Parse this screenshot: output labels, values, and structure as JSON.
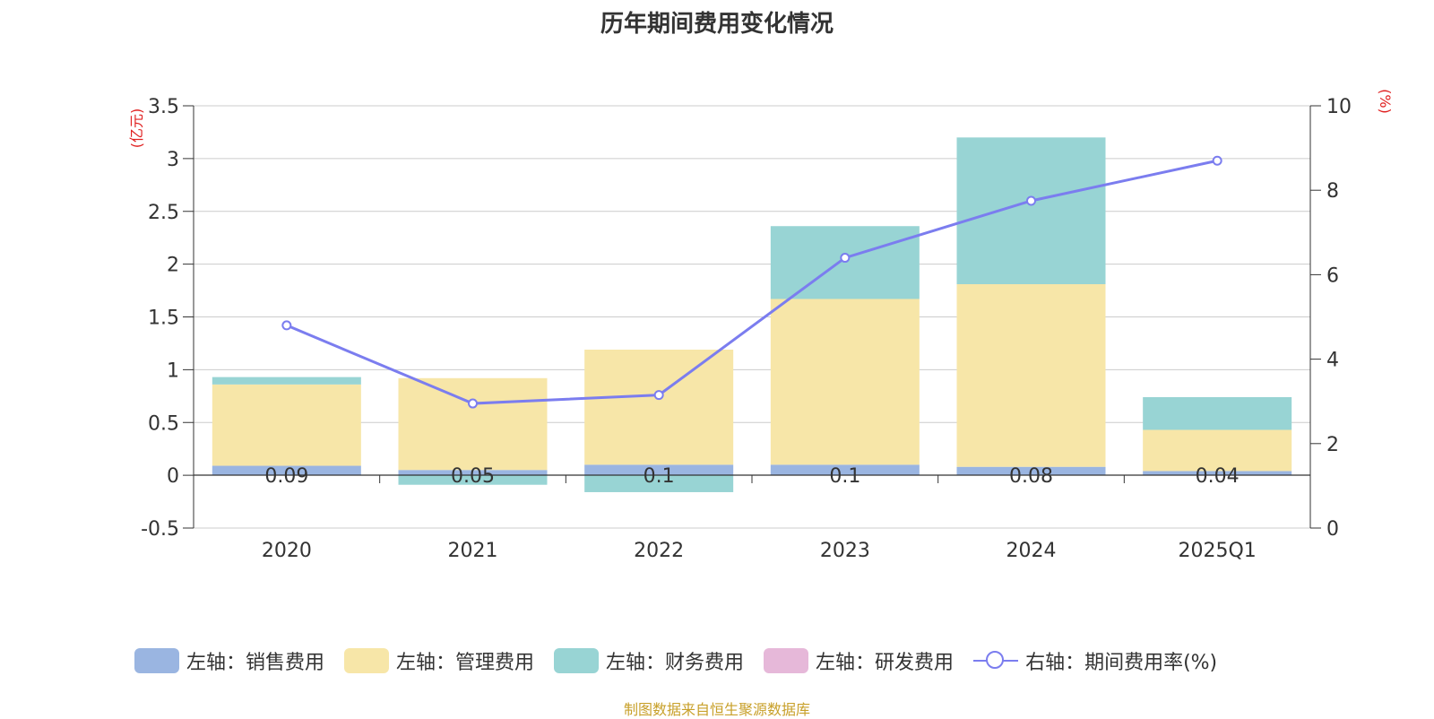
{
  "title": "历年期间费用变化情况",
  "source_note": "制图数据来自恒生聚源数据库",
  "left_unit": "(亿元)",
  "right_unit": "(%)",
  "colors": {
    "sales": "#9ab5e1",
    "admin": "#f7e6a8",
    "finance": "#98d4d4",
    "rd": "#e6b8d9",
    "rate": "#7b7def",
    "axis_unit": "#e02020"
  },
  "chart_data": {
    "type": "bar",
    "categories": [
      "2020",
      "2021",
      "2022",
      "2023",
      "2024",
      "2025Q1"
    ],
    "series": [
      {
        "name": "左轴：销售费用",
        "key": "sales",
        "axis": "left",
        "stack": true,
        "values": [
          0.09,
          0.05,
          0.1,
          0.1,
          0.08,
          0.04
        ]
      },
      {
        "name": "左轴：管理费用",
        "key": "admin",
        "axis": "left",
        "stack": true,
        "values": [
          0.77,
          0.87,
          1.09,
          1.57,
          1.73,
          0.39
        ]
      },
      {
        "name": "左轴：财务费用",
        "key": "finance",
        "axis": "left",
        "stack": true,
        "values": [
          0.07,
          -0.09,
          -0.16,
          0.69,
          1.39,
          0.31
        ]
      },
      {
        "name": "左轴：研发费用",
        "key": "rd",
        "axis": "left",
        "stack": true,
        "values": [
          0,
          0,
          0,
          0,
          0,
          0
        ]
      },
      {
        "name": "右轴：期间费用率(%)",
        "key": "rate",
        "axis": "right",
        "type": "line",
        "values": [
          4.8,
          2.95,
          3.15,
          6.4,
          7.75,
          8.7
        ]
      }
    ],
    "data_labels": [
      "0.09",
      "0.05",
      "0.1",
      "0.1",
      "0.08",
      "0.04"
    ],
    "left_axis": {
      "ylim": [
        -0.5,
        3.5
      ],
      "ticks": [
        -0.5,
        0,
        0.5,
        1,
        1.5,
        2,
        2.5,
        3,
        3.5
      ],
      "tick_labels": [
        "-0.5",
        "0",
        "0.5",
        "1",
        "1.5",
        "2",
        "2.5",
        "3",
        "3.5"
      ]
    },
    "right_axis": {
      "ylim": [
        0,
        10
      ],
      "ticks": [
        0,
        2,
        4,
        6,
        8,
        10
      ],
      "tick_labels": [
        "0",
        "2",
        "4",
        "6",
        "8",
        "10"
      ]
    },
    "grid": true,
    "legend_position": "bottom"
  }
}
